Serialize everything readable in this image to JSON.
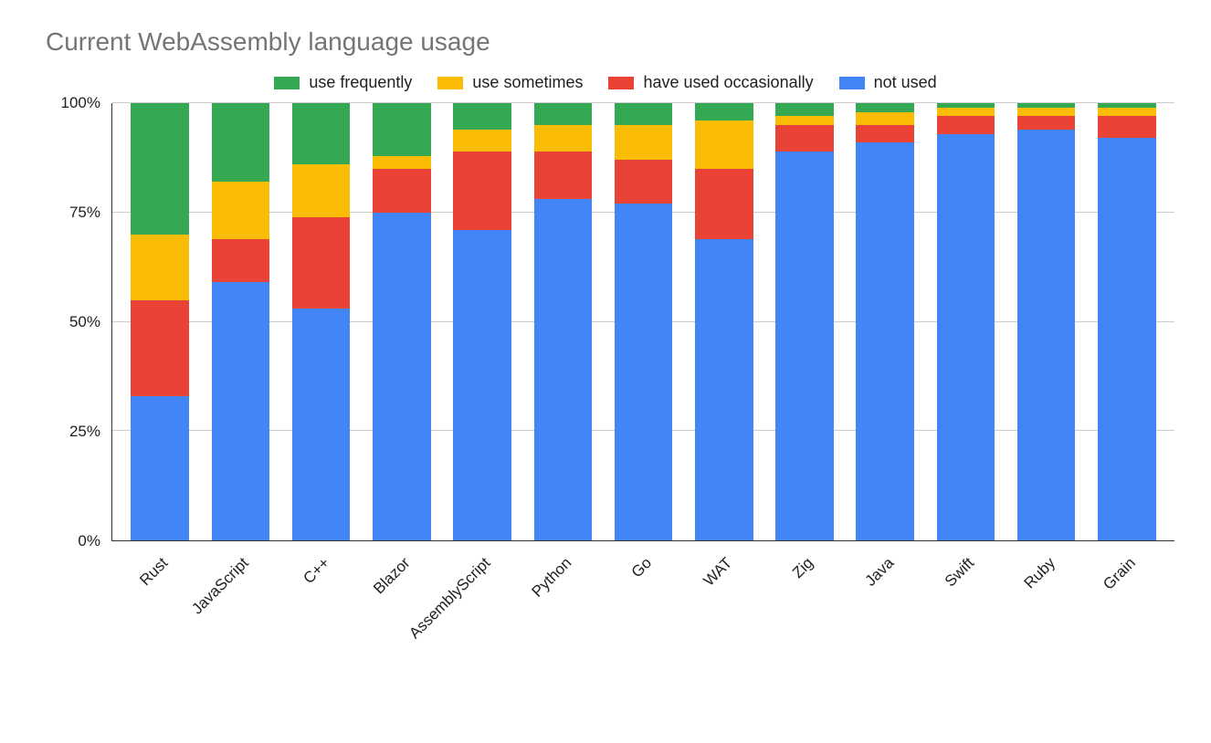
{
  "chart": {
    "type": "stacked-bar-100",
    "title": "Current WebAssembly language usage",
    "title_fontsize": 28,
    "title_color": "#757575",
    "background_color": "#ffffff",
    "grid_color": "#cccccc",
    "axis_color": "#333333",
    "label_fontsize": 17,
    "label_color": "#212121",
    "legend_fontsize": 18,
    "bar_width_pct": 72,
    "ylim": [
      0,
      100
    ],
    "ytick_step": 25,
    "yticks": [
      "0%",
      "25%",
      "50%",
      "75%",
      "100%"
    ],
    "series": [
      {
        "key": "use_frequently",
        "label": "use frequently",
        "color": "#34a853"
      },
      {
        "key": "use_sometimes",
        "label": "use sometimes",
        "color": "#fbbc04"
      },
      {
        "key": "have_used_occasionally",
        "label": "have used occasionally",
        "color": "#ea4335"
      },
      {
        "key": "not_used",
        "label": "not used",
        "color": "#4285f4"
      }
    ],
    "categories": [
      {
        "label": "Rust",
        "values": {
          "not_used": 33,
          "have_used_occasionally": 22,
          "use_sometimes": 15,
          "use_frequently": 30
        }
      },
      {
        "label": "JavaScript",
        "values": {
          "not_used": 59,
          "have_used_occasionally": 10,
          "use_sometimes": 13,
          "use_frequently": 18
        }
      },
      {
        "label": "C++",
        "values": {
          "not_used": 53,
          "have_used_occasionally": 21,
          "use_sometimes": 12,
          "use_frequently": 14
        }
      },
      {
        "label": "Blazor",
        "values": {
          "not_used": 75,
          "have_used_occasionally": 10,
          "use_sometimes": 3,
          "use_frequently": 12
        }
      },
      {
        "label": "AssemblyScript",
        "values": {
          "not_used": 71,
          "have_used_occasionally": 18,
          "use_sometimes": 5,
          "use_frequently": 6
        }
      },
      {
        "label": "Python",
        "values": {
          "not_used": 78,
          "have_used_occasionally": 11,
          "use_sometimes": 6,
          "use_frequently": 5
        }
      },
      {
        "label": "Go",
        "values": {
          "not_used": 77,
          "have_used_occasionally": 10,
          "use_sometimes": 8,
          "use_frequently": 5
        }
      },
      {
        "label": "WAT",
        "values": {
          "not_used": 69,
          "have_used_occasionally": 16,
          "use_sometimes": 11,
          "use_frequently": 4
        }
      },
      {
        "label": "Zig",
        "values": {
          "not_used": 89,
          "have_used_occasionally": 6,
          "use_sometimes": 2,
          "use_frequently": 3
        }
      },
      {
        "label": "Java",
        "values": {
          "not_used": 91,
          "have_used_occasionally": 4,
          "use_sometimes": 3,
          "use_frequently": 2
        }
      },
      {
        "label": "Swift",
        "values": {
          "not_used": 93,
          "have_used_occasionally": 4,
          "use_sometimes": 2,
          "use_frequently": 1
        }
      },
      {
        "label": "Ruby",
        "values": {
          "not_used": 94,
          "have_used_occasionally": 3,
          "use_sometimes": 2,
          "use_frequently": 1
        }
      },
      {
        "label": "Grain",
        "values": {
          "not_used": 92,
          "have_used_occasionally": 5,
          "use_sometimes": 2,
          "use_frequently": 1
        }
      }
    ]
  }
}
